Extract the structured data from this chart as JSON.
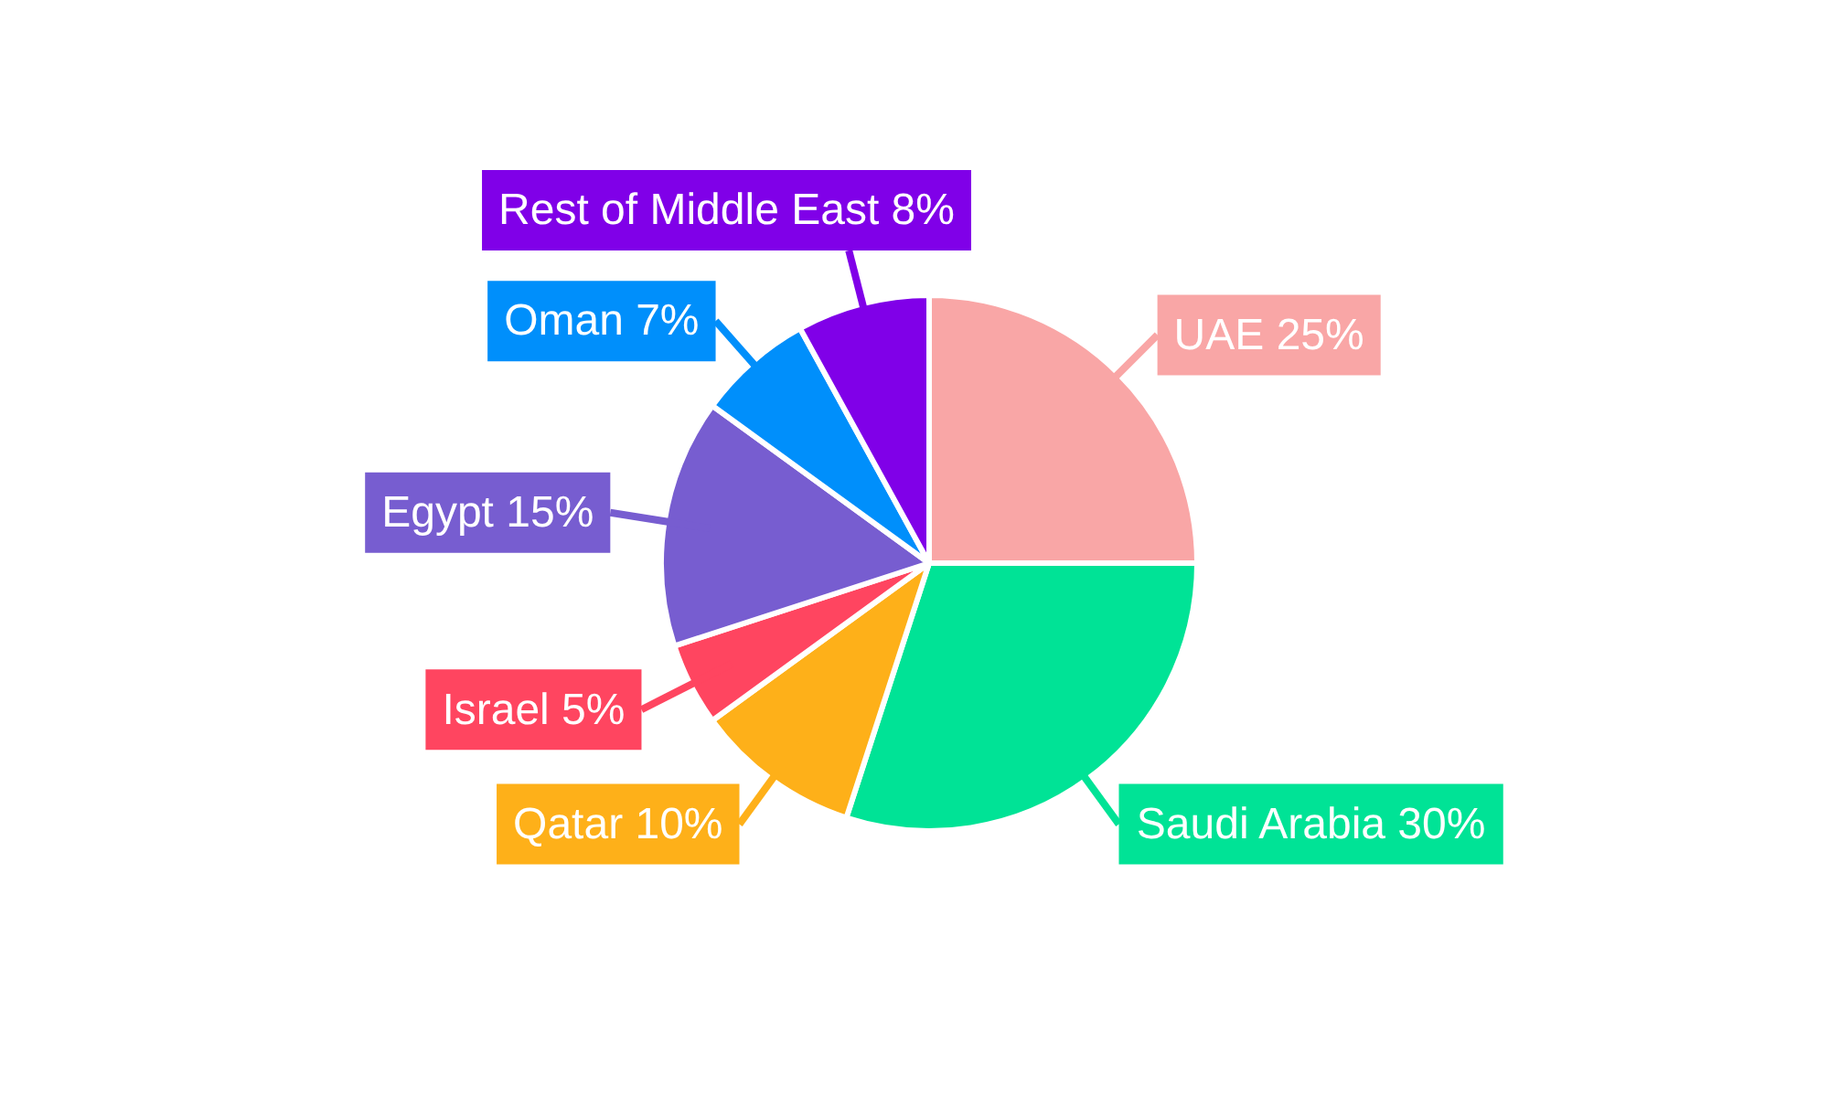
{
  "chart_data": {
    "type": "pie",
    "categories": [
      "UAE",
      "Saudi Arabia",
      "Qatar",
      "Israel",
      "Egypt",
      "Oman",
      "Rest of Middle East"
    ],
    "values": [
      25,
      30,
      10,
      5,
      15,
      7,
      8
    ],
    "value_labels": [
      "25%",
      "30%",
      "10%",
      "5%",
      "15%",
      "7%",
      "8%"
    ],
    "colors": [
      "#f9a6a6",
      "#00e396",
      "#feb019",
      "#ff4560",
      "#775dd0",
      "#008ffb",
      "#8000e8"
    ],
    "legend": false
  }
}
